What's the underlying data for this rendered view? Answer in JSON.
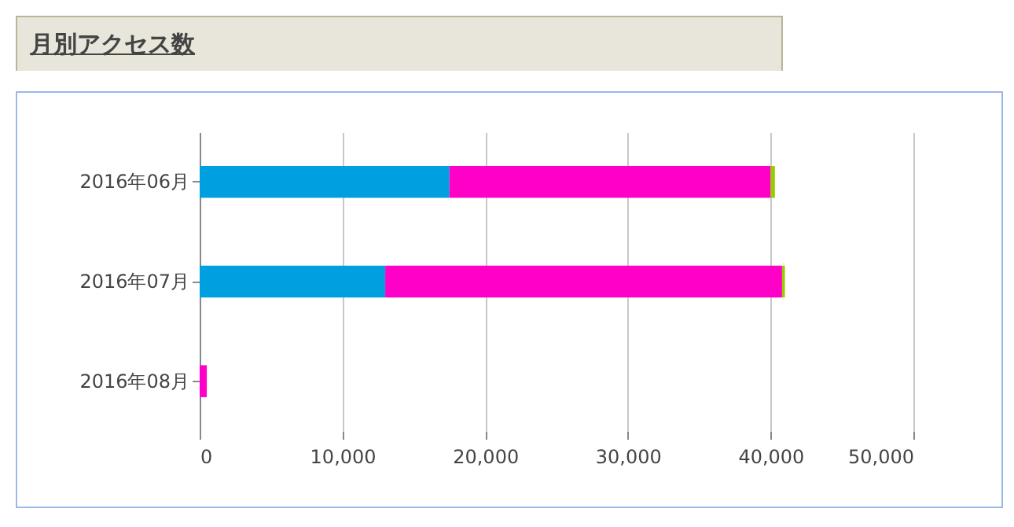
{
  "chart_data": {
    "type": "bar",
    "title": "月別アクセス数",
    "orientation": "horizontal",
    "stacked": true,
    "categories": [
      "2016年06月",
      "2016年07月",
      "2016年08月"
    ],
    "series": [
      {
        "color": "#00a0e0",
        "values": [
          17500,
          13000,
          0
        ]
      },
      {
        "color": "#ff00c8",
        "values": [
          22500,
          27800,
          500
        ]
      },
      {
        "color": "#99cc00",
        "values": [
          300,
          200,
          0
        ]
      }
    ],
    "xlim": [
      0,
      50000
    ],
    "xticks": [
      0,
      {
        "value": 10000,
        "label": "10,000"
      },
      {
        "value": 20000,
        "label": "20,000"
      },
      {
        "value": 30000,
        "label": "30,000"
      },
      {
        "value": 40000,
        "label": "40,000"
      },
      {
        "value": 50000,
        "label": "50,000"
      }
    ],
    "grid": "x",
    "legend": false
  }
}
